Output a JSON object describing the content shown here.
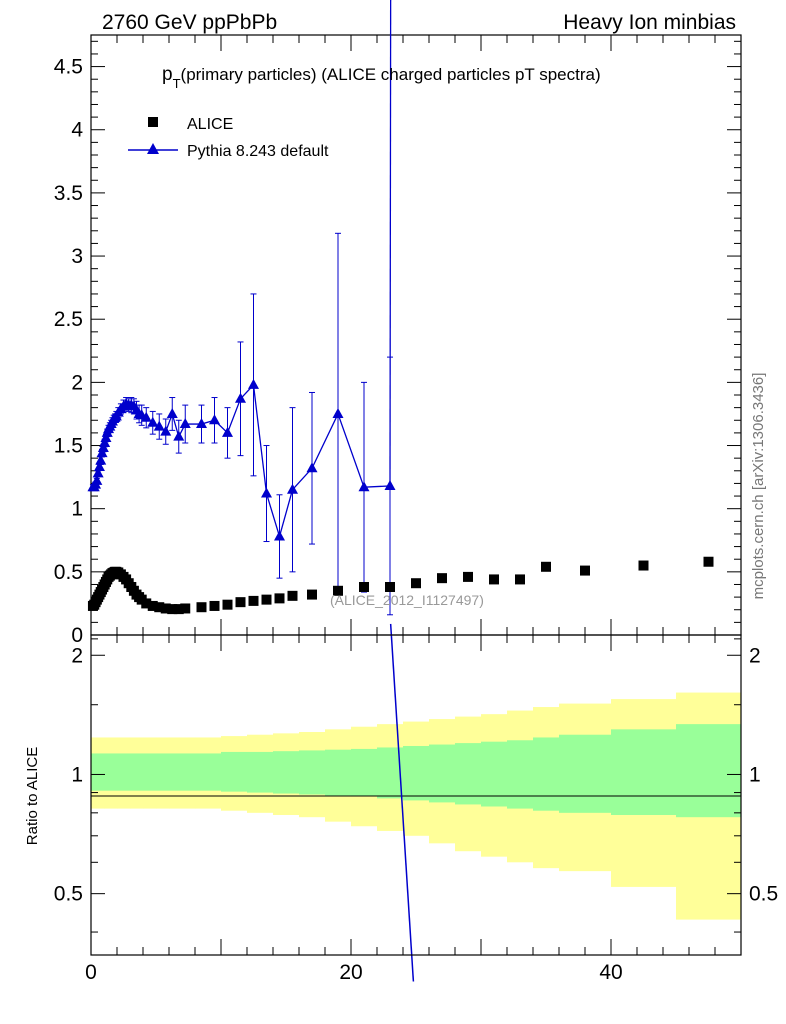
{
  "header": {
    "left": "2760 GeV ppPbPb",
    "right": "Heavy Ion minbias"
  },
  "chart_data": {
    "type": "scatter",
    "title_main": "p",
    "title_sub": "T",
    "title_rest": "(primary particles) (ALICE charged particles pT spectra)",
    "reference_label": "(ALICE_2012_I1127497)",
    "side_label": "mcplots.cern.ch [arXiv:1306.3436]",
    "ratio_ylabel": "Ratio to ALICE",
    "xlim": [
      0,
      50
    ],
    "ylim": [
      0,
      4.75
    ],
    "ratio_ylim": [
      0.35,
      2.25
    ],
    "ratio_log": true,
    "x_ticks": [
      "0",
      "20",
      "40"
    ],
    "y_ticks": [
      "0",
      "0.5",
      "1",
      "1.5",
      "2",
      "2.5",
      "3",
      "3.5",
      "4",
      "4.5"
    ],
    "ratio_ticks": [
      "0.5",
      "1",
      "2"
    ],
    "legend_position": "top-left",
    "series": [
      {
        "name": "ALICE",
        "marker": "square",
        "color": "#000000",
        "points": [
          [
            0.15,
            0.23
          ],
          [
            0.25,
            0.24
          ],
          [
            0.35,
            0.26
          ],
          [
            0.45,
            0.28
          ],
          [
            0.55,
            0.3
          ],
          [
            0.65,
            0.32
          ],
          [
            0.75,
            0.34
          ],
          [
            0.85,
            0.36
          ],
          [
            0.95,
            0.38
          ],
          [
            1.05,
            0.4
          ],
          [
            1.15,
            0.42
          ],
          [
            1.25,
            0.44
          ],
          [
            1.35,
            0.46
          ],
          [
            1.45,
            0.47
          ],
          [
            1.55,
            0.48
          ],
          [
            1.65,
            0.49
          ],
          [
            1.75,
            0.495
          ],
          [
            1.85,
            0.5
          ],
          [
            1.95,
            0.5
          ],
          [
            2.1,
            0.495
          ],
          [
            2.3,
            0.48
          ],
          [
            2.5,
            0.46
          ],
          [
            2.7,
            0.44
          ],
          [
            2.9,
            0.41
          ],
          [
            3.1,
            0.38
          ],
          [
            3.3,
            0.35
          ],
          [
            3.5,
            0.32
          ],
          [
            3.7,
            0.3
          ],
          [
            3.9,
            0.28
          ],
          [
            4.25,
            0.25
          ],
          [
            4.75,
            0.23
          ],
          [
            5.25,
            0.22
          ],
          [
            5.75,
            0.21
          ],
          [
            6.25,
            0.205
          ],
          [
            6.75,
            0.205
          ],
          [
            7.25,
            0.21
          ],
          [
            8.5,
            0.22
          ],
          [
            9.5,
            0.23
          ],
          [
            10.5,
            0.24
          ],
          [
            11.5,
            0.26
          ],
          [
            12.5,
            0.27
          ],
          [
            13.5,
            0.28
          ],
          [
            14.5,
            0.29
          ],
          [
            15.5,
            0.31
          ],
          [
            17,
            0.32
          ],
          [
            19,
            0.35
          ],
          [
            21,
            0.38
          ],
          [
            23,
            0.38
          ],
          [
            25,
            0.41
          ],
          [
            27,
            0.45
          ],
          [
            29,
            0.46
          ],
          [
            31,
            0.44
          ],
          [
            33,
            0.44
          ],
          [
            35,
            0.54
          ],
          [
            38,
            0.51
          ],
          [
            42.5,
            0.55
          ],
          [
            47.5,
            0.58
          ]
        ],
        "ratio_band_edges": [
          0,
          1,
          2,
          3,
          4,
          5,
          6,
          8,
          10,
          12,
          14,
          16,
          18,
          20,
          22,
          24,
          26,
          28,
          30,
          32,
          34,
          36,
          40,
          45,
          50
        ],
        "ratio_inner": [
          [
            0.91,
            1.13
          ],
          [
            0.91,
            1.13
          ],
          [
            0.91,
            1.13
          ],
          [
            0.91,
            1.13
          ],
          [
            0.91,
            1.13
          ],
          [
            0.91,
            1.13
          ],
          [
            0.91,
            1.13
          ],
          [
            0.91,
            1.13
          ],
          [
            0.905,
            1.14
          ],
          [
            0.9,
            1.14
          ],
          [
            0.895,
            1.145
          ],
          [
            0.89,
            1.15
          ],
          [
            0.885,
            1.155
          ],
          [
            0.88,
            1.16
          ],
          [
            0.87,
            1.17
          ],
          [
            0.86,
            1.18
          ],
          [
            0.85,
            1.19
          ],
          [
            0.84,
            1.2
          ],
          [
            0.83,
            1.21
          ],
          [
            0.82,
            1.22
          ],
          [
            0.81,
            1.24
          ],
          [
            0.8,
            1.26
          ],
          [
            0.79,
            1.3
          ],
          [
            0.78,
            1.34
          ]
        ],
        "ratio_outer": [
          [
            0.82,
            1.24
          ],
          [
            0.82,
            1.24
          ],
          [
            0.82,
            1.24
          ],
          [
            0.82,
            1.24
          ],
          [
            0.82,
            1.24
          ],
          [
            0.82,
            1.24
          ],
          [
            0.82,
            1.24
          ],
          [
            0.82,
            1.24
          ],
          [
            0.81,
            1.25
          ],
          [
            0.8,
            1.26
          ],
          [
            0.79,
            1.27
          ],
          [
            0.78,
            1.28
          ],
          [
            0.76,
            1.3
          ],
          [
            0.74,
            1.32
          ],
          [
            0.72,
            1.34
          ],
          [
            0.7,
            1.36
          ],
          [
            0.67,
            1.38
          ],
          [
            0.64,
            1.4
          ],
          [
            0.62,
            1.42
          ],
          [
            0.6,
            1.45
          ],
          [
            0.58,
            1.48
          ],
          [
            0.57,
            1.51
          ],
          [
            0.52,
            1.55
          ],
          [
            0.43,
            1.61
          ]
        ]
      },
      {
        "name": "Pythia 8.243 default",
        "marker": "triangle",
        "color": "#0000cc",
        "points": [
          [
            0.15,
            1.17,
            0.02
          ],
          [
            0.25,
            1.17,
            0.02
          ],
          [
            0.35,
            1.19,
            0.02
          ],
          [
            0.45,
            1.22,
            0.02
          ],
          [
            0.55,
            1.28,
            0.02
          ],
          [
            0.65,
            1.33,
            0.02
          ],
          [
            0.75,
            1.38,
            0.03
          ],
          [
            0.85,
            1.44,
            0.03
          ],
          [
            0.95,
            1.48,
            0.03
          ],
          [
            1.05,
            1.52,
            0.03
          ],
          [
            1.15,
            1.56,
            0.03
          ],
          [
            1.25,
            1.6,
            0.03
          ],
          [
            1.35,
            1.63,
            0.03
          ],
          [
            1.45,
            1.65,
            0.03
          ],
          [
            1.55,
            1.67,
            0.03
          ],
          [
            1.65,
            1.69,
            0.03
          ],
          [
            1.75,
            1.71,
            0.03
          ],
          [
            1.85,
            1.72,
            0.03
          ],
          [
            1.95,
            1.73,
            0.04
          ],
          [
            2.1,
            1.76,
            0.04
          ],
          [
            2.3,
            1.79,
            0.04
          ],
          [
            2.5,
            1.81,
            0.05
          ],
          [
            2.7,
            1.83,
            0.05
          ],
          [
            2.9,
            1.82,
            0.05
          ],
          [
            3.1,
            1.82,
            0.06
          ],
          [
            3.3,
            1.81,
            0.06
          ],
          [
            3.5,
            1.78,
            0.07
          ],
          [
            3.7,
            1.75,
            0.07
          ],
          [
            3.9,
            1.74,
            0.08
          ],
          [
            4.25,
            1.72,
            0.08
          ],
          [
            4.75,
            1.68,
            0.09
          ],
          [
            5.25,
            1.65,
            0.1
          ],
          [
            5.75,
            1.61,
            0.1
          ],
          [
            6.25,
            1.75,
            0.13
          ],
          [
            6.75,
            1.57,
            0.13
          ],
          [
            7.25,
            1.67,
            0.15
          ],
          [
            8.5,
            1.67,
            0.15
          ],
          [
            9.5,
            1.7,
            0.18
          ],
          [
            10.5,
            1.6,
            0.2
          ],
          [
            11.5,
            1.87,
            0.45
          ],
          [
            12.5,
            1.98,
            0.72
          ],
          [
            13.5,
            1.12,
            0.38
          ],
          [
            14.5,
            0.78,
            0.33
          ],
          [
            15.5,
            1.15,
            0.65
          ],
          [
            17,
            1.32,
            0.6
          ],
          [
            19,
            1.75,
            1.43
          ],
          [
            21,
            1.17,
            0.83
          ],
          [
            23,
            1.18,
            1.02
          ]
        ]
      }
    ],
    "pythia_ratio_line": [
      [
        23.05,
        2.4
      ],
      [
        24.8,
        0.3
      ]
    ],
    "pythia_main_spike_x": 23.05
  }
}
